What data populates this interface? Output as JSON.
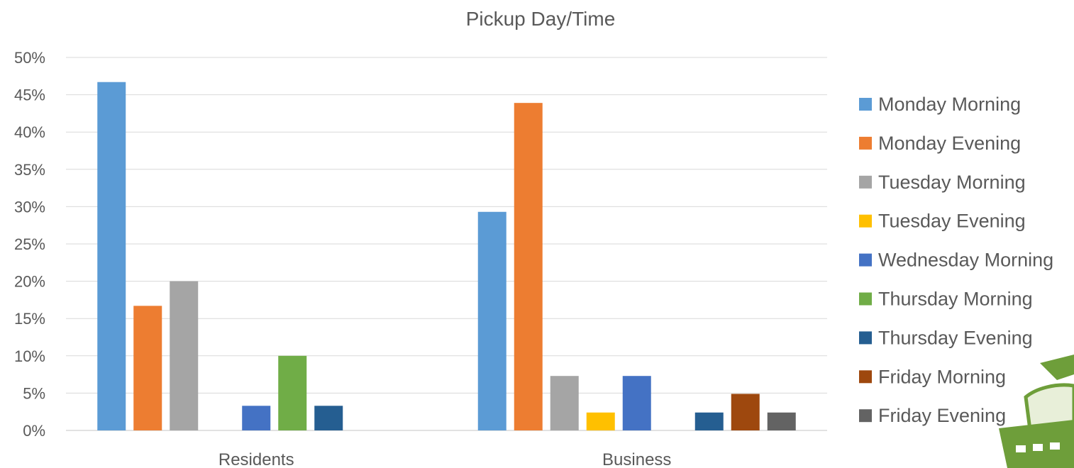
{
  "chart_data": {
    "type": "bar",
    "title": "Pickup Day/Time",
    "xlabel": "",
    "ylabel": "",
    "ylim": [
      0,
      50
    ],
    "yticks": [
      "0%",
      "5%",
      "10%",
      "15%",
      "20%",
      "25%",
      "30%",
      "35%",
      "40%",
      "45%",
      "50%"
    ],
    "categories": [
      "Residents",
      "Business"
    ],
    "grid": true,
    "legend_position": "right",
    "series": [
      {
        "name": "Monday Morning",
        "color": "#5b9bd5",
        "values": [
          46.7,
          29.3
        ]
      },
      {
        "name": "Monday Evening",
        "color": "#ed7d31",
        "values": [
          16.7,
          43.9
        ]
      },
      {
        "name": "Tuesday Morning",
        "color": "#a5a5a5",
        "values": [
          20.0,
          7.3
        ]
      },
      {
        "name": "Tuesday Evening",
        "color": "#ffc000",
        "values": [
          0,
          2.4
        ]
      },
      {
        "name": "Wednesday Morning",
        "color": "#4472c4",
        "values": [
          3.3,
          7.3
        ]
      },
      {
        "name": "Thursday Morning",
        "color": "#70ad47",
        "values": [
          10.0,
          0
        ]
      },
      {
        "name": "Thursday Evening",
        "color": "#255e91",
        "values": [
          3.3,
          2.4
        ]
      },
      {
        "name": "Friday Morning",
        "color": "#9e480e",
        "values": [
          0,
          4.9
        ]
      },
      {
        "name": "Friday Evening",
        "color": "#636363",
        "values": [
          0,
          2.4
        ]
      }
    ]
  },
  "icons": {
    "corner_logo": "shopping-basket-icon"
  }
}
